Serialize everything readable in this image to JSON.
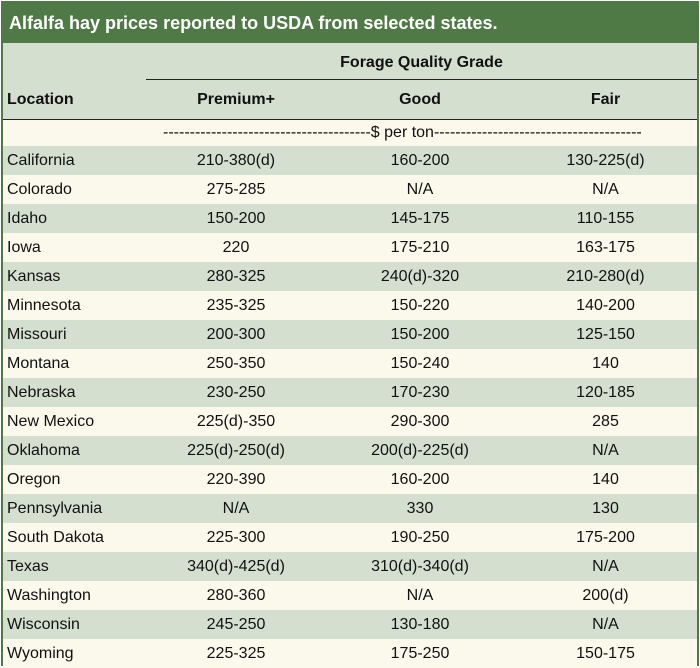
{
  "title": "Alfalfa hay prices reported to USDA from selected states.",
  "header": {
    "group_label": "Forage Quality Grade",
    "location_label": "Location",
    "columns": [
      "Premium+",
      "Good",
      "Fair"
    ]
  },
  "units_label": "---------------------------------------$ per ton---------------------------------------",
  "rows": [
    {
      "location": "California",
      "premium": "210-380(d)",
      "good": "160-200",
      "fair": "130-225(d)"
    },
    {
      "location": "Colorado",
      "premium": "275-285",
      "good": "N/A",
      "fair": "N/A"
    },
    {
      "location": "Idaho",
      "premium": "150-200",
      "good": "145-175",
      "fair": "110-155"
    },
    {
      "location": "Iowa",
      "premium": "220",
      "good": "175-210",
      "fair": "163-175"
    },
    {
      "location": "Kansas",
      "premium": "280-325",
      "good": "240(d)-320",
      "fair": "210-280(d)"
    },
    {
      "location": "Minnesota",
      "premium": "235-325",
      "good": "150-220",
      "fair": "140-200"
    },
    {
      "location": "Missouri",
      "premium": "200-300",
      "good": "150-200",
      "fair": "125-150"
    },
    {
      "location": "Montana",
      "premium": "250-350",
      "good": "150-240",
      "fair": "140"
    },
    {
      "location": "Nebraska",
      "premium": "230-250",
      "good": "170-230",
      "fair": "120-185"
    },
    {
      "location": "New Mexico",
      "premium": "225(d)-350",
      "good": "290-300",
      "fair": "285"
    },
    {
      "location": "Oklahoma",
      "premium": "225(d)-250(d)",
      "good": "200(d)-225(d)",
      "fair": "N/A"
    },
    {
      "location": "Oregon",
      "premium": "220-390",
      "good": "160-200",
      "fair": "140"
    },
    {
      "location": "Pennsylvania",
      "premium": "N/A",
      "good": "330",
      "fair": "130"
    },
    {
      "location": "South Dakota",
      "premium": "225-300",
      "good": "190-250",
      "fair": "175-200"
    },
    {
      "location": "Texas",
      "premium": "340(d)-425(d)",
      "good": "310(d)-340(d)",
      "fair": "N/A"
    },
    {
      "location": "Washington",
      "premium": "280-360",
      "good": "N/A",
      "fair": "200(d)"
    },
    {
      "location": "Wisconsin",
      "premium": "245-250",
      "good": "130-180",
      "fair": "N/A"
    },
    {
      "location": "Wyoming",
      "premium": "225-325",
      "good": "175-250",
      "fair": "150-175"
    }
  ]
}
